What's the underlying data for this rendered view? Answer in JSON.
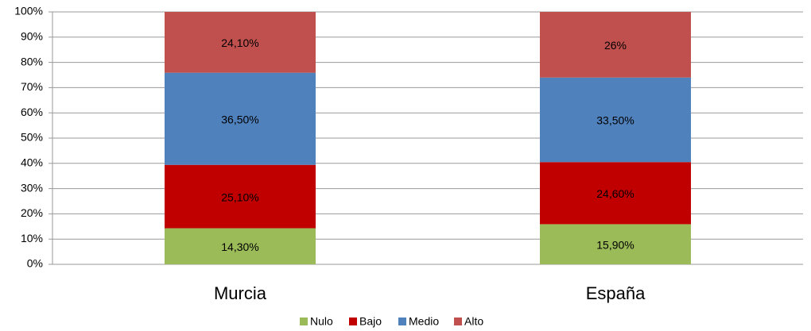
{
  "chart_data": {
    "type": "stacked_bar",
    "categories": [
      "Murcia",
      "España"
    ],
    "series": [
      {
        "name": "Nulo",
        "color": "#9bbb59",
        "values": [
          14.3,
          15.9
        ],
        "value_labels": [
          "14,30%",
          "15,90%"
        ]
      },
      {
        "name": "Bajo",
        "color": "#c00000",
        "values": [
          25.1,
          24.6
        ],
        "value_labels": [
          "25,10%",
          "24,60%"
        ]
      },
      {
        "name": "Medio",
        "color": "#4f81bd",
        "values": [
          36.5,
          33.5
        ],
        "value_labels": [
          "36,50%",
          "33,50%"
        ]
      },
      {
        "name": "Alto",
        "color": "#c0504d",
        "values": [
          24.1,
          26
        ],
        "value_labels": [
          "24,10%",
          "26%"
        ]
      }
    ],
    "ylim": [
      0,
      100
    ],
    "yticks": [
      {
        "value": 0,
        "label": "0%"
      },
      {
        "value": 10,
        "label": "10%"
      },
      {
        "value": 20,
        "label": "20%"
      },
      {
        "value": 30,
        "label": "30%"
      },
      {
        "value": 40,
        "label": "40%"
      },
      {
        "value": 50,
        "label": "50%"
      },
      {
        "value": 60,
        "label": "60%"
      },
      {
        "value": 70,
        "label": "70%"
      },
      {
        "value": 80,
        "label": "80%"
      },
      {
        "value": 90,
        "label": "90%"
      },
      {
        "value": 100,
        "label": "100%"
      }
    ],
    "grid": true,
    "legend": "bottom"
  }
}
